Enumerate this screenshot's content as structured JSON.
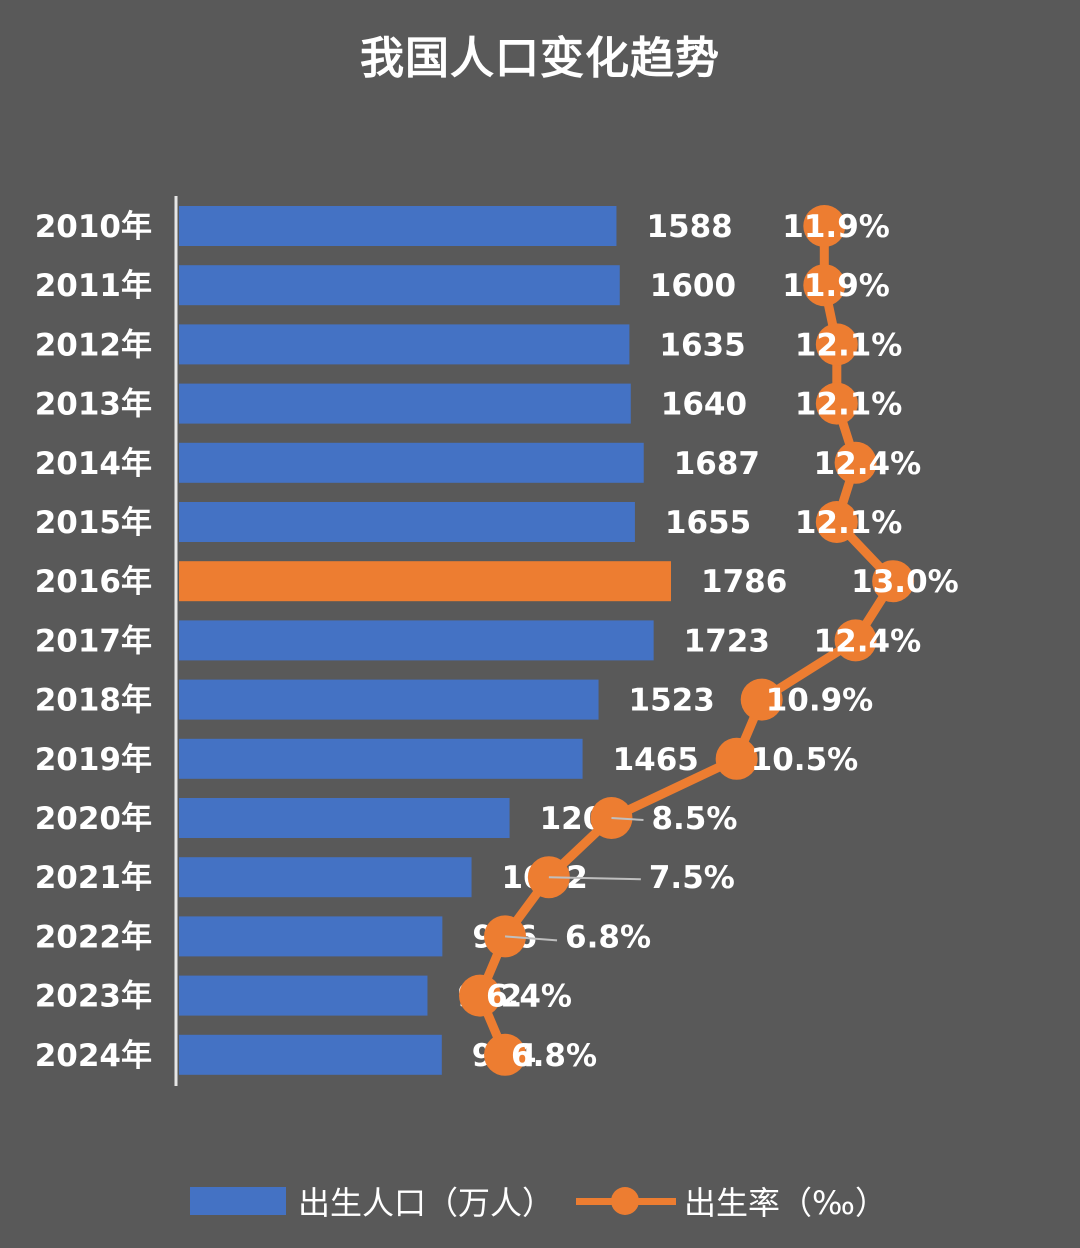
{
  "chart_data": {
    "type": "bar",
    "title": "我国人口变化趋势",
    "categories": [
      "2010年",
      "2011年",
      "2012年",
      "2013年",
      "2014年",
      "2015年",
      "2016年",
      "2017年",
      "2018年",
      "2019年",
      "2020年",
      "2021年",
      "2022年",
      "2023年",
      "2024年"
    ],
    "series": [
      {
        "name": "出生人口（万人）",
        "type": "bar",
        "values": [
          1588,
          1600,
          1635,
          1640,
          1687,
          1655,
          1786,
          1723,
          1523,
          1465,
          1200,
          1062,
          956,
          902,
          954
        ],
        "labels": [
          "1588",
          "1600",
          "1635",
          "1640",
          "1687",
          "1655",
          "1786",
          "1723",
          "1523",
          "1465",
          "1200",
          "1062",
          "956",
          "902",
          "954"
        ],
        "color": "#4472C4",
        "highlight_index": 6,
        "highlight_color": "#ED7D31"
      },
      {
        "name": "出生率（‰）",
        "type": "line",
        "values": [
          11.9,
          11.9,
          12.1,
          12.1,
          12.4,
          12.1,
          13.0,
          12.4,
          10.9,
          10.5,
          8.5,
          7.5,
          6.8,
          6.4,
          6.8
        ],
        "labels": [
          "11.9%",
          "11.9%",
          "12.1%",
          "12.1%",
          "12.4%",
          "12.1%",
          "13.0%",
          "12.4%",
          "10.9%",
          "10.5%",
          "8.5%",
          "7.5%",
          "6.8%",
          "6.4%",
          "6.8%"
        ],
        "color": "#ED7D31"
      }
    ],
    "orientation": "horizontal",
    "legend_position": "bottom",
    "grid": false
  }
}
